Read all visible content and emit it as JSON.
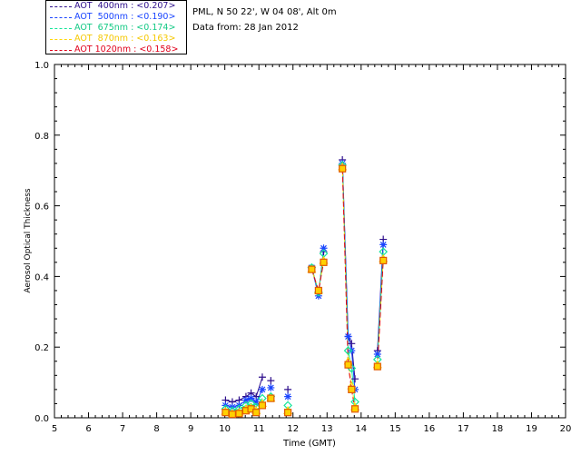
{
  "header": {
    "station": "PML, N 50 22', W 04 08', Alt 0m",
    "date_line": "Data from: 28 Jan 2012"
  },
  "legend": [
    {
      "label": "AOT  400nm : <0.207>",
      "color": "#2e0f8c"
    },
    {
      "label": "AOT  500nm : <0.190>",
      "color": "#1a45ff"
    },
    {
      "label": "AOT  675nm : <0.174>",
      "color": "#12e69a"
    },
    {
      "label": "AOT  870nm : <0.163>",
      "color": "#ffd700"
    },
    {
      "label": "AOT 1020nm : <0.158>",
      "color": "#e0001a"
    }
  ],
  "chart_data": {
    "type": "line",
    "xlabel": "Time (GMT)",
    "ylabel": "Aerosol Optical Thickness",
    "xlim": [
      5,
      20
    ],
    "ylim": [
      0,
      1.0
    ],
    "xticks": [
      "5",
      "6",
      "7",
      "8",
      "9",
      "10",
      "11",
      "12",
      "13",
      "14",
      "15",
      "16",
      "17",
      "18",
      "19",
      "20"
    ],
    "yticks": [
      "0.0",
      "0.2",
      "0.4",
      "0.6",
      "0.8",
      "1.0"
    ],
    "grid": false,
    "legend_position": "top-left",
    "segments": [
      [
        10.02,
        10.22,
        10.42,
        10.62,
        10.77,
        10.92,
        11.1
      ],
      [
        11.35
      ],
      [
        11.85
      ],
      [
        12.55,
        12.75,
        12.9
      ],
      [
        13.45,
        13.62,
        13.72,
        13.82
      ],
      [
        14.48,
        14.65
      ]
    ],
    "series": [
      {
        "name": "AOT  400nm : <0.207>",
        "marker": "+",
        "color": "#2e0f8c",
        "values": [
          [
            0.05,
            0.045,
            0.05,
            0.06,
            0.07,
            0.06,
            0.115
          ],
          [
            0.105
          ],
          [
            0.08
          ],
          [
            0.425,
            0.355,
            0.47
          ],
          [
            0.73,
            0.23,
            0.21,
            0.11
          ],
          [
            0.19,
            0.505
          ]
        ]
      },
      {
        "name": "AOT  500nm : <0.190>",
        "marker": "*",
        "color": "#1a45ff",
        "values": [
          [
            0.035,
            0.03,
            0.035,
            0.05,
            0.055,
            0.045,
            0.08
          ],
          [
            0.085
          ],
          [
            0.06
          ],
          [
            0.425,
            0.345,
            0.48
          ],
          [
            0.72,
            0.23,
            0.19,
            0.08
          ],
          [
            0.18,
            0.49
          ]
        ]
      },
      {
        "name": "AOT  675nm : <0.174>",
        "marker": "◇",
        "color": "#12e69a",
        "values": [
          [
            0.025,
            0.02,
            0.025,
            0.035,
            0.04,
            0.03,
            0.055
          ],
          [
            0.06
          ],
          [
            0.035
          ],
          [
            0.425,
            0.355,
            0.465
          ],
          [
            0.715,
            0.19,
            0.14,
            0.045
          ],
          [
            0.165,
            0.47
          ]
        ]
      },
      {
        "name": "AOT  870nm : <0.163>",
        "marker": "△",
        "color": "#ffd700",
        "values": [
          [
            0.018,
            0.012,
            0.015,
            0.025,
            0.028,
            0.02,
            0.04
          ],
          [
            0.055
          ],
          [
            0.02
          ],
          [
            0.42,
            0.36,
            0.445
          ],
          [
            0.71,
            0.16,
            0.09,
            0.03
          ],
          [
            0.15,
            0.45
          ]
        ]
      },
      {
        "name": "AOT 1020nm : <0.158>",
        "marker": "□",
        "color": "#e0001a",
        "values": [
          [
            0.015,
            0.01,
            0.012,
            0.02,
            0.025,
            0.015,
            0.035
          ],
          [
            0.055
          ],
          [
            0.015
          ],
          [
            0.42,
            0.36,
            0.44
          ],
          [
            0.705,
            0.15,
            0.08,
            0.025
          ],
          [
            0.145,
            0.445
          ]
        ]
      }
    ]
  }
}
